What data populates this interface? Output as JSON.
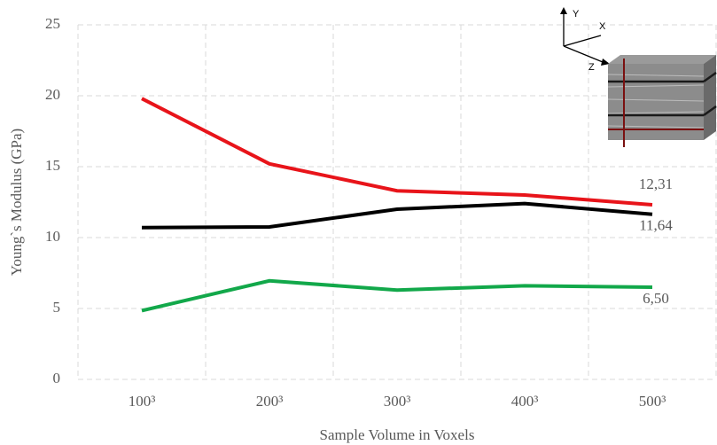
{
  "chart_data": {
    "type": "line",
    "x_label": "Sample Volume in Voxels",
    "y_label": "Young`s Modulus (GPa)",
    "categories": [
      "100³",
      "200³",
      "300³",
      "400³",
      "500³"
    ],
    "series": [
      {
        "name": null,
        "color": "#e8141a",
        "values": [
          19.8,
          15.2,
          13.3,
          13.0,
          12.31
        ],
        "value_labels": [
          null,
          null,
          null,
          null,
          "12,31"
        ]
      },
      {
        "name": null,
        "color": "#000000",
        "values": [
          10.7,
          10.75,
          12.0,
          12.4,
          11.64
        ],
        "value_labels": [
          null,
          null,
          null,
          null,
          "11,64"
        ]
      },
      {
        "name": null,
        "color": "#12a84a",
        "values": [
          4.85,
          6.95,
          6.3,
          6.6,
          6.5
        ],
        "value_labels": [
          null,
          null,
          null,
          null,
          "6,50"
        ]
      }
    ],
    "ylim": [
      0,
      25
    ],
    "yticks": [
      0,
      5,
      10,
      15,
      20,
      25
    ],
    "grid": true,
    "inset_axis_labels": [
      "Y",
      "X",
      "Z"
    ]
  }
}
